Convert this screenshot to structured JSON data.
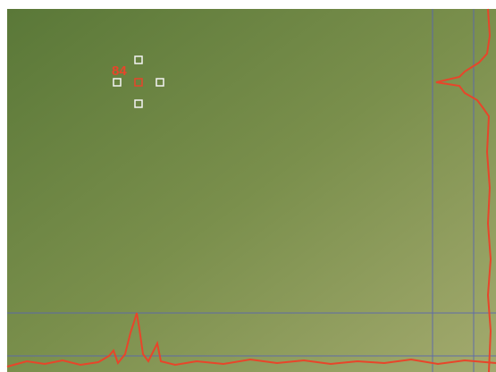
{
  "marker": {
    "label": "84"
  }
}
